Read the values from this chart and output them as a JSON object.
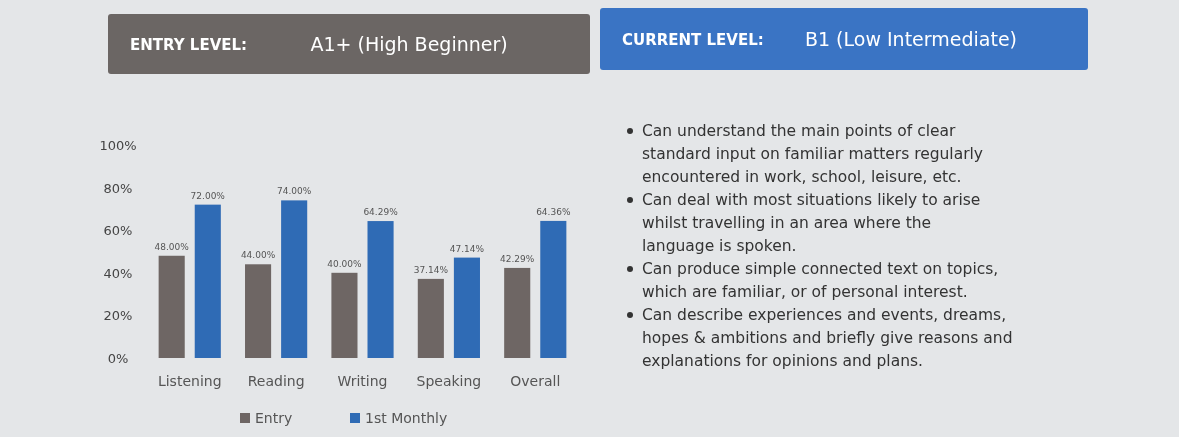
{
  "chart_data": [
    {
      "type": "bar",
      "title": "ENTRY LEVEL:",
      "subtitle": "A1+ (High Beginner)",
      "categories": [
        "Listening",
        "Reading",
        "Writing",
        "Speaking",
        "Overall"
      ],
      "series": [
        {
          "name": "Entry",
          "color": "#6e6664",
          "values": [
            48,
            44,
            40,
            37.14,
            42.29
          ],
          "value_labels": [
            "48.00%",
            "44.00%",
            "40.00%",
            "37.14%",
            "42.29%"
          ]
        },
        {
          "name": "1st Monthly",
          "color": "#2f6bb5",
          "values": [
            72,
            74,
            64.29,
            47.14,
            64.36
          ],
          "value_labels": [
            "72.00%",
            "74.00%",
            "64.29%",
            "47.14%",
            "64.36%"
          ]
        }
      ],
      "ylim": [
        0,
        100
      ],
      "yticks": [
        {
          "value": 0,
          "label": "0%"
        },
        {
          "value": 20,
          "label": "20%"
        },
        {
          "value": 40,
          "label": "40%"
        },
        {
          "value": 60,
          "label": "60%"
        },
        {
          "value": 80,
          "label": "80%"
        },
        {
          "value": 100,
          "label": "100%"
        }
      ],
      "legend": "bottom"
    },
    {
      "type": "other",
      "title": "CURRENT LEVEL:",
      "subtitle": "B1 (Low Intermediate)",
      "annotations": [
        "Can understand the main points of clear standard input on familiar matters regularly encountered in work, school, leisure, etc.",
        "Can deal with most situations likely to arise whilst travelling in an area where the language is spoken.",
        "Can produce simple connected text on topics, which are familiar, or of personal interest.",
        "Can describe experiences and events, dreams, hopes & ambitions and briefly give reasons and explanations for opinions and plans."
      ]
    }
  ]
}
